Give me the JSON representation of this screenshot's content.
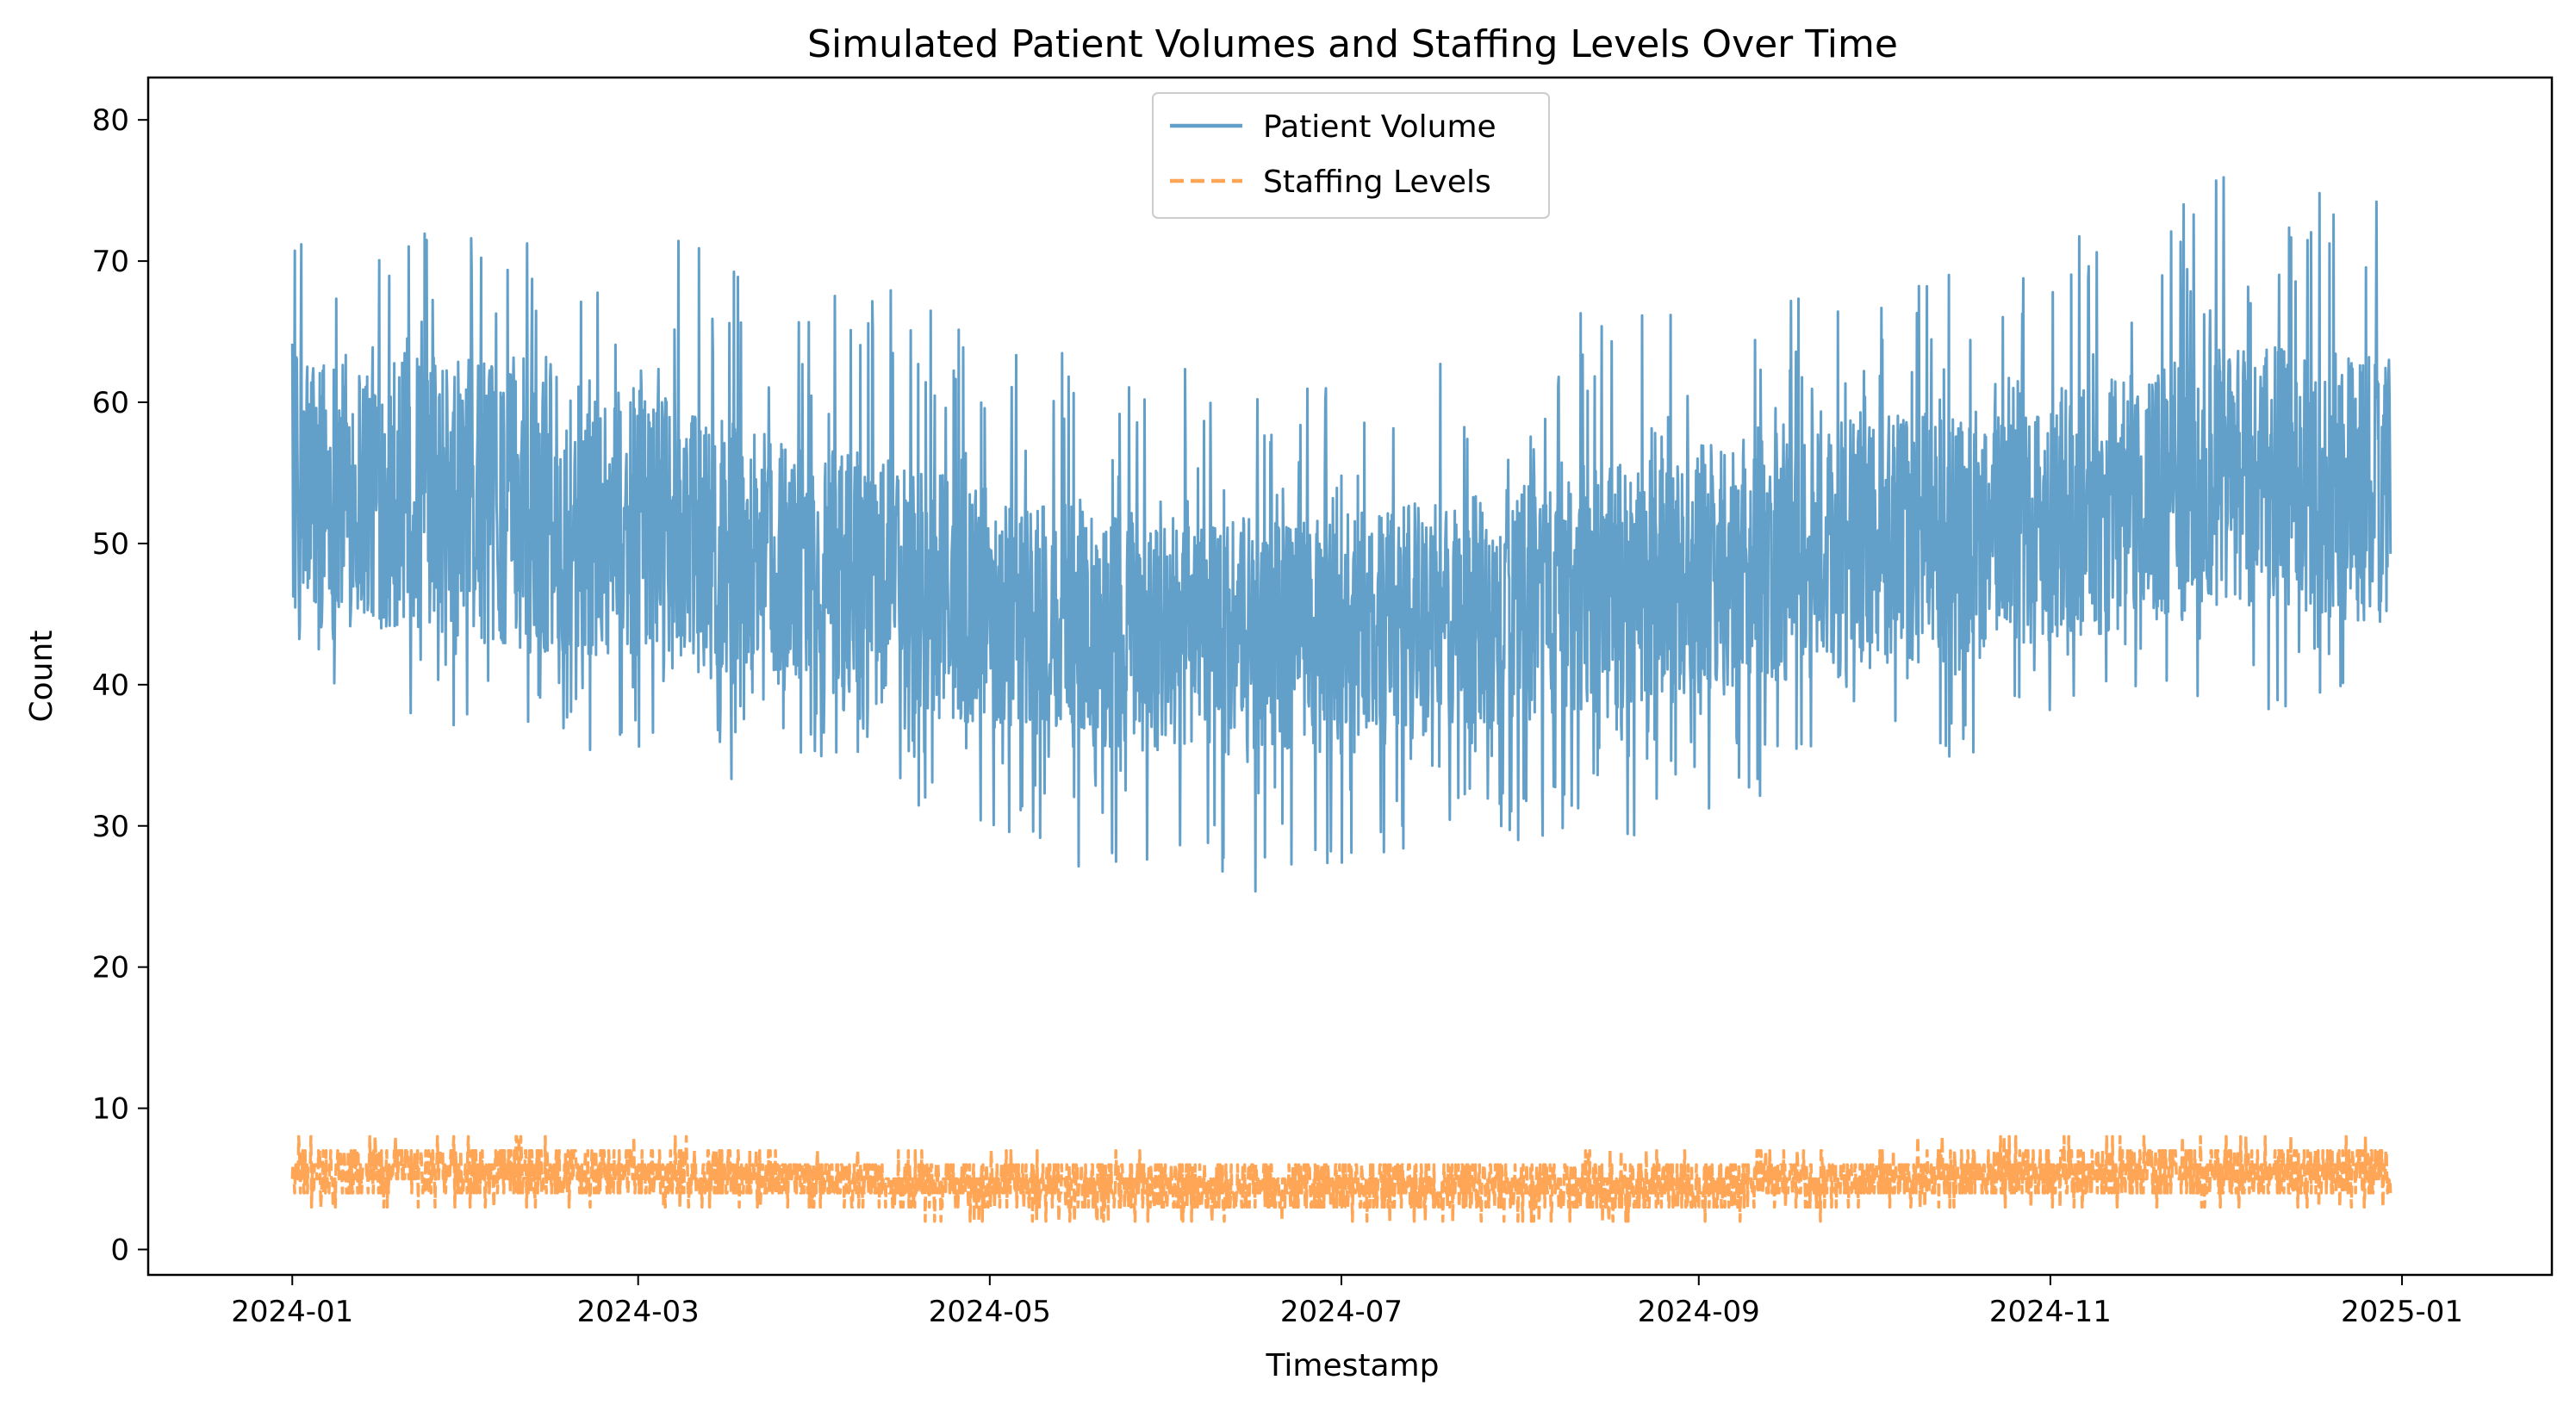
{
  "chart_data": {
    "type": "line",
    "title": "Simulated Patient Volumes and Staffing Levels Over Time",
    "xlabel": "Timestamp",
    "ylabel": "Count",
    "xlim": [
      "2023-12-07",
      "2025-01-27"
    ],
    "ylim": [
      -1.8,
      83.0
    ],
    "x_ticks": [
      "2024-01",
      "2024-03",
      "2024-05",
      "2024-07",
      "2024-09",
      "2024-11",
      "2025-01"
    ],
    "y_ticks": [
      0,
      10,
      20,
      30,
      40,
      50,
      60,
      70,
      80
    ],
    "grid": false,
    "legend": {
      "placement": "upper center"
    },
    "date_range": [
      "2024-01-01",
      "2024-12-30"
    ],
    "sampling": "hourly",
    "series": [
      {
        "name": "Patient Volume",
        "color": "#1f77b4",
        "opacity": 0.7,
        "style": "solid",
        "envelope": {
          "x": [
            "2024-01-01",
            "2024-01-15",
            "2024-02-01",
            "2024-02-15",
            "2024-03-01",
            "2024-03-15",
            "2024-04-01",
            "2024-04-15",
            "2024-05-01",
            "2024-05-15",
            "2024-06-01",
            "2024-06-15",
            "2024-07-01",
            "2024-07-15",
            "2024-08-01",
            "2024-08-15",
            "2024-09-01",
            "2024-09-15",
            "2024-10-01",
            "2024-10-15",
            "2024-11-01",
            "2024-11-15",
            "2024-12-01",
            "2024-12-15",
            "2024-12-30"
          ],
          "upper": [
            73,
            75,
            76,
            73,
            72,
            71,
            68,
            69,
            64,
            65,
            63,
            62,
            63,
            65,
            66,
            67,
            67,
            68,
            69,
            71,
            72,
            74,
            76,
            76,
            74
          ],
          "lower": [
            39,
            37,
            36,
            35,
            35,
            33,
            33,
            32,
            29,
            27,
            26,
            25,
            26,
            27,
            28,
            29,
            30,
            32,
            33,
            34,
            36,
            37,
            38,
            38,
            40
          ],
          "dense_upper": [
            64,
            64,
            63,
            62,
            61,
            59,
            57,
            56,
            54,
            53,
            52,
            52,
            52,
            53,
            54,
            56,
            57,
            58,
            59,
            60,
            61,
            62,
            64,
            64,
            63
          ],
          "dense_lower": [
            44,
            44,
            43,
            42,
            42,
            40,
            39,
            38,
            37,
            36,
            35,
            35,
            35,
            36,
            37,
            38,
            39,
            40,
            41,
            42,
            43,
            44,
            45,
            45,
            44
          ],
          "peak": [
            79.2,
            22.2
          ]
        }
      },
      {
        "name": "Staffing Levels",
        "color": "#ff7f0e",
        "opacity": 0.7,
        "style": "dashed",
        "envelope": {
          "x": [
            "2024-01-01",
            "2024-03-01",
            "2024-05-01",
            "2024-07-01",
            "2024-09-01",
            "2024-11-01",
            "2024-12-30"
          ],
          "upper": [
            8,
            8,
            7,
            6,
            7,
            8,
            8
          ],
          "lower": [
            3,
            3,
            2,
            2,
            2,
            3,
            3
          ],
          "dense_upper": [
            7,
            7,
            6,
            6,
            6,
            7,
            7
          ],
          "dense_lower": [
            4,
            4,
            3,
            3,
            3,
            4,
            4
          ]
        }
      }
    ]
  }
}
